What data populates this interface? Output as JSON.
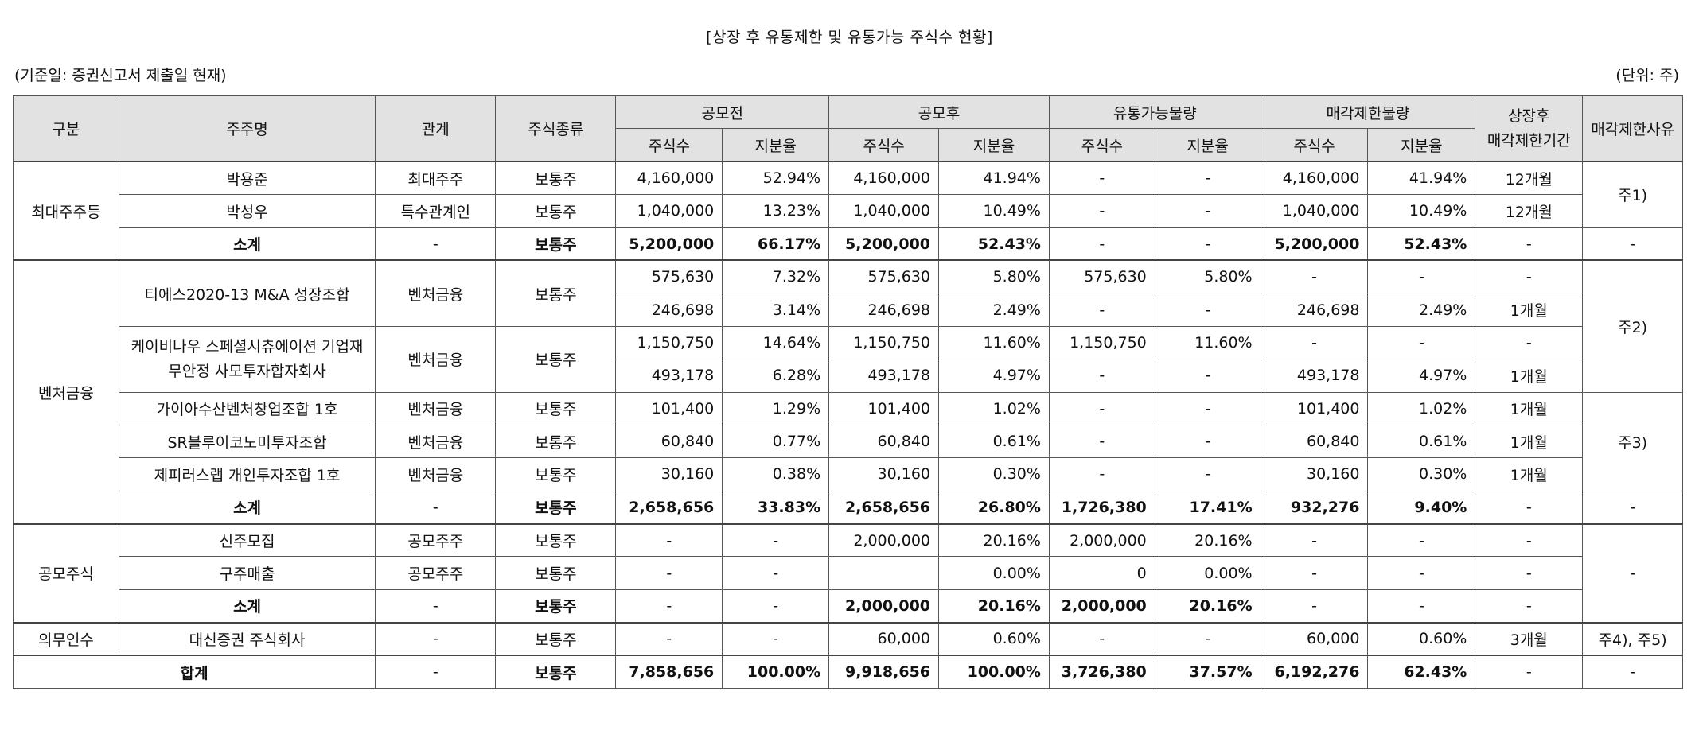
{
  "title": "[상장 후 유통제한 및 유통가능 주식수 현황]",
  "basis": "(기준일: 증권신고서 제출일 현재)",
  "unit": "(단위: 주)",
  "header": {
    "gubun": "구분",
    "holder": "주주명",
    "relation": "관계",
    "stock_type": "주식종류",
    "pre_ipo": "공모전",
    "post_ipo": "공모후",
    "tradable": "유통가능물량",
    "restricted": "매각제한물량",
    "period_l1": "상장후",
    "period_l2": "매각제한기간",
    "reason": "매각제한사유",
    "shares": "주식수",
    "ratio": "지분율"
  },
  "rows": [
    [
      "박용준",
      "최대주주",
      "보통주",
      "4,160,000",
      "52.94%",
      "4,160,000",
      "41.94%",
      "-",
      "-",
      "4,160,000",
      "41.94%",
      "12개월"
    ],
    [
      "박성우",
      "특수관계인",
      "보통주",
      "1,040,000",
      "13.23%",
      "1,040,000",
      "10.49%",
      "-",
      "-",
      "1,040,000",
      "10.49%",
      "12개월"
    ],
    [
      "소계",
      "-",
      "보통주",
      "5,200,000",
      "66.17%",
      "5,200,000",
      "52.43%",
      "-",
      "-",
      "5,200,000",
      "52.43%",
      "-"
    ],
    [
      "티에스2020-13 M&A 성장조합",
      "벤처금융",
      "보통주",
      "575,630",
      "7.32%",
      "575,630",
      "5.80%",
      "575,630",
      "5.80%",
      "-",
      "-",
      "-"
    ],
    [
      "",
      "",
      "",
      "246,698",
      "3.14%",
      "246,698",
      "2.49%",
      "-",
      "-",
      "246,698",
      "2.49%",
      "1개월"
    ],
    [
      "케이비나우 스페셜시츄에이션 기업재무안정 사모투자합자회사",
      "벤처금융",
      "보통주",
      "1,150,750",
      "14.64%",
      "1,150,750",
      "11.60%",
      "1,150,750",
      "11.60%",
      "-",
      "-",
      "-"
    ],
    [
      "",
      "",
      "",
      "493,178",
      "6.28%",
      "493,178",
      "4.97%",
      "-",
      "-",
      "493,178",
      "4.97%",
      "1개월"
    ],
    [
      "가이아수산벤처창업조합 1호",
      "벤처금융",
      "보통주",
      "101,400",
      "1.29%",
      "101,400",
      "1.02%",
      "-",
      "-",
      "101,400",
      "1.02%",
      "1개월"
    ],
    [
      "SR블루이코노미투자조합",
      "벤처금융",
      "보통주",
      "60,840",
      "0.77%",
      "60,840",
      "0.61%",
      "-",
      "-",
      "60,840",
      "0.61%",
      "1개월"
    ],
    [
      "제피러스랩 개인투자조합 1호",
      "벤처금융",
      "보통주",
      "30,160",
      "0.38%",
      "30,160",
      "0.30%",
      "-",
      "-",
      "30,160",
      "0.30%",
      "1개월"
    ],
    [
      "소계",
      "-",
      "보통주",
      "2,658,656",
      "33.83%",
      "2,658,656",
      "26.80%",
      "1,726,380",
      "17.41%",
      "932,276",
      "9.40%",
      "-"
    ],
    [
      "신주모집",
      "공모주주",
      "보통주",
      "-",
      "-",
      "2,000,000",
      "20.16%",
      "2,000,000",
      "20.16%",
      "-",
      "-",
      "-"
    ],
    [
      "구주매출",
      "공모주주",
      "보통주",
      "-",
      "-",
      "",
      "0.00%",
      "0",
      "0.00%",
      "-",
      "-",
      "-"
    ],
    [
      "소계",
      "-",
      "보통주",
      "-",
      "-",
      "2,000,000",
      "20.16%",
      "2,000,000",
      "20.16%",
      "-",
      "-",
      "-"
    ],
    [
      "대신증권 주식회사",
      "-",
      "보통주",
      "-",
      "-",
      "60,000",
      "0.60%",
      "-",
      "-",
      "60,000",
      "0.60%",
      "3개월"
    ],
    [
      "합계",
      "-",
      "보통주",
      "7,858,656",
      "100.00%",
      "9,918,656",
      "100.00%",
      "3,726,380",
      "37.57%",
      "6,192,276",
      "62.43%",
      "-"
    ]
  ],
  "groups": {
    "g1": "최대주주등",
    "g2": "벤처금융",
    "g3": "공모주식",
    "g4": "의무인수"
  },
  "reasons": {
    "r1": "주1)",
    "r1_sub": "-",
    "r2": "주2)",
    "r3": "주3)",
    "r3_sub": "-",
    "r4": "-",
    "r5": "주4), 주5)",
    "r_total": "-"
  }
}
